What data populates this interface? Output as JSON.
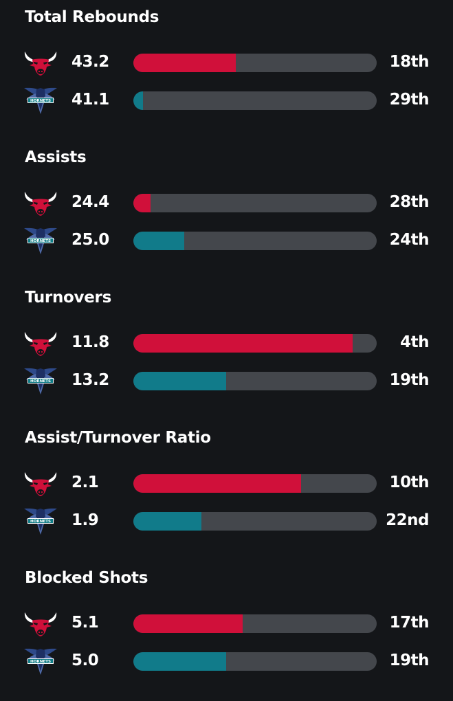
{
  "colors": {
    "background": "#141619",
    "track": "#44474c",
    "bulls": "#d0103a",
    "hornets": "#117b8a"
  },
  "teams": {
    "bulls": {
      "icon": "bulls-logo-icon"
    },
    "hornets": {
      "icon": "hornets-logo-icon",
      "logo_text": "HORNETS"
    }
  },
  "stats": [
    {
      "title": "Total Rebounds",
      "rows": [
        {
          "team": "bulls",
          "value": "43.2",
          "rank": "18th",
          "fill": 0.42
        },
        {
          "team": "hornets",
          "value": "41.1",
          "rank": "29th",
          "fill": 0.04
        }
      ]
    },
    {
      "title": "Assists",
      "rows": [
        {
          "team": "bulls",
          "value": "24.4",
          "rank": "28th",
          "fill": 0.07
        },
        {
          "team": "hornets",
          "value": "25.0",
          "rank": "24th",
          "fill": 0.21
        }
      ]
    },
    {
      "title": "Turnovers",
      "rows": [
        {
          "team": "bulls",
          "value": "11.8",
          "rank": "4th",
          "fill": 0.9
        },
        {
          "team": "hornets",
          "value": "13.2",
          "rank": "19th",
          "fill": 0.38
        }
      ]
    },
    {
      "title": "Assist/Turnover Ratio",
      "rows": [
        {
          "team": "bulls",
          "value": "2.1",
          "rank": "10th",
          "fill": 0.69
        },
        {
          "team": "hornets",
          "value": "1.9",
          "rank": "22nd",
          "fill": 0.28
        }
      ]
    },
    {
      "title": "Blocked Shots",
      "rows": [
        {
          "team": "bulls",
          "value": "5.1",
          "rank": "17th",
          "fill": 0.45
        },
        {
          "team": "hornets",
          "value": "5.0",
          "rank": "19th",
          "fill": 0.38
        }
      ]
    }
  ]
}
